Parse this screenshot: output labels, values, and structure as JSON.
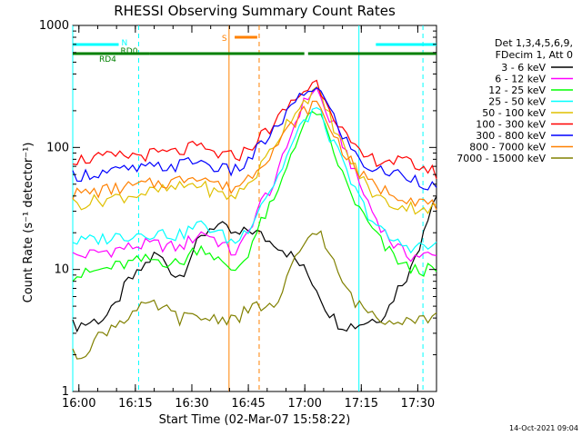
{
  "chart_data": {
    "type": "line",
    "title": "RHESSI Observing Summary Count Rates",
    "xlabel": "Start Time (02-Mar-07 15:58:22)",
    "ylabel": "Count Rate (s⁻¹ detector⁻¹)",
    "x_start_time": "15:58:22",
    "xlim_minutes": [
      0,
      96.6
    ],
    "x_ticks": [
      {
        "label": "16:00",
        "t": 1.63
      },
      {
        "label": "16:15",
        "t": 16.63
      },
      {
        "label": "16:30",
        "t": 31.63
      },
      {
        "label": "16:45",
        "t": 46.63
      },
      {
        "label": "17:00",
        "t": 61.63
      },
      {
        "label": "17:15",
        "t": 76.63
      },
      {
        "label": "17:30",
        "t": 91.63
      }
    ],
    "ylim": [
      1,
      1000
    ],
    "y_scale": "log",
    "y_ticks": [
      {
        "label": "1",
        "v": 1
      },
      {
        "label": "10",
        "v": 10
      },
      {
        "label": "100",
        "v": 100
      },
      {
        "label": "1000",
        "v": 1000
      }
    ],
    "legend": {
      "header": [
        "Det 1,3,4,5,6,9,",
        "FDecim 1, Att 0"
      ],
      "placement": "right"
    },
    "series": [
      {
        "name": "3 - 6 keV",
        "color": "#000000",
        "values": [
          3.5,
          3.5,
          3.6,
          3.6,
          3.7,
          3.8,
          3.9,
          4,
          4.2,
          4.5,
          5,
          6,
          7,
          8,
          8.5,
          9,
          10,
          11,
          12,
          13,
          13,
          12,
          11,
          10,
          9,
          9,
          10,
          12,
          14,
          16,
          18,
          20,
          22,
          23,
          23,
          22,
          21,
          20,
          19,
          19,
          20,
          21,
          21,
          20,
          19,
          18,
          17,
          17,
          16,
          15,
          14,
          13,
          12,
          11,
          10,
          9,
          8,
          7,
          6,
          5,
          4.5,
          4,
          3.7,
          3.6,
          3.5,
          3.5,
          3.5,
          3.6,
          3.7,
          3.8,
          3.9,
          4,
          4.2,
          4.5,
          5,
          6,
          7,
          8,
          9,
          10,
          13,
          16,
          22,
          28,
          35,
          40
        ]
      },
      {
        "name": "6 - 12 keV",
        "color": "#ff00ff",
        "values": [
          13,
          13,
          13,
          13.2,
          13.4,
          13.6,
          13.8,
          14,
          14.2,
          14.4,
          14.6,
          14.8,
          15,
          15.2,
          15.4,
          15.6,
          15.8,
          16,
          16,
          16,
          16,
          15.8,
          15.6,
          15.4,
          15.2,
          15,
          16,
          17,
          18,
          19,
          20,
          20,
          19,
          18,
          17,
          16,
          15,
          14,
          14,
          15,
          17,
          20,
          25,
          30,
          35,
          40,
          45,
          50,
          60,
          80,
          100,
          130,
          160,
          200,
          230,
          260,
          290,
          300,
          250,
          200,
          170,
          150,
          130,
          110,
          90,
          75,
          60,
          50,
          42,
          36,
          30,
          26,
          23,
          20,
          18,
          16,
          15,
          14,
          13.5,
          13,
          13,
          13,
          13,
          13,
          12.8,
          12.6
        ]
      },
      {
        "name": "12 - 25 keV",
        "color": "#00ff00",
        "values": [
          9,
          9,
          9,
          9.2,
          9.4,
          9.6,
          9.8,
          10,
          10.2,
          10.4,
          10.6,
          10.8,
          11,
          11.2,
          11.4,
          11.6,
          11.8,
          12,
          12,
          12,
          12,
          11.8,
          11.6,
          11.4,
          11.2,
          11,
          12,
          13,
          14,
          15,
          15,
          15,
          14,
          13,
          12,
          11,
          10,
          10,
          10,
          11,
          12,
          14,
          17,
          20,
          24,
          28,
          32,
          36,
          42,
          55,
          70,
          90,
          110,
          130,
          150,
          170,
          190,
          200,
          170,
          140,
          110,
          90,
          75,
          60,
          50,
          42,
          36,
          31,
          27,
          24,
          21,
          19,
          17,
          15,
          14,
          13,
          12,
          11,
          10.5,
          10,
          10,
          10,
          10,
          10,
          9.8,
          9.6
        ]
      },
      {
        "name": "25 - 50 keV",
        "color": "#00ffff",
        "values": [
          17,
          17,
          17,
          17.2,
          17.4,
          17.6,
          17.8,
          18,
          18.2,
          18.4,
          18.6,
          18.8,
          19,
          19.2,
          19.4,
          19.6,
          19.8,
          20,
          20,
          20,
          20,
          19.8,
          19.6,
          19.4,
          19.2,
          19,
          20,
          21,
          22,
          23,
          23,
          23,
          22,
          21,
          20,
          19,
          18,
          17,
          17,
          18,
          20,
          22,
          26,
          30,
          35,
          40,
          45,
          50,
          58,
          70,
          85,
          100,
          120,
          140,
          160,
          180,
          200,
          210,
          180,
          150,
          125,
          105,
          90,
          75,
          62,
          52,
          44,
          38,
          33,
          29,
          26,
          23,
          21,
          19,
          18,
          17,
          16.5,
          16,
          15.8,
          15.6,
          15.5,
          15.5,
          15.5,
          15.4,
          15.3,
          15.2
        ]
      },
      {
        "name": "50 - 100 keV",
        "color": "#e0c000",
        "values": [
          35,
          35,
          35,
          35.5,
          36,
          36.5,
          37,
          37.5,
          38,
          38.5,
          39,
          39.5,
          40,
          40.5,
          41,
          41.5,
          42,
          42.5,
          43,
          43.5,
          44,
          44.5,
          45,
          45.5,
          46,
          47,
          48,
          49,
          50,
          50,
          49,
          47,
          45,
          43,
          42,
          41,
          40,
          40,
          41,
          43,
          46,
          50,
          56,
          62,
          70,
          80,
          92,
          105,
          120,
          140,
          160,
          180,
          200,
          220,
          240,
          260,
          280,
          290,
          250,
          210,
          180,
          150,
          125,
          105,
          90,
          78,
          68,
          60,
          53,
          47,
          43,
          40,
          38,
          36,
          35,
          34,
          33.5,
          33,
          32.8,
          32.6,
          32.4,
          32.2,
          32,
          31.8,
          31.6,
          31.4
        ]
      },
      {
        "name": "100 - 300 keV",
        "color": "#ff0000",
        "values": [
          80,
          80,
          80,
          80.5,
          81,
          81.5,
          82,
          82.5,
          83,
          83.5,
          84,
          84.5,
          85,
          85.5,
          86,
          86.5,
          87,
          87.5,
          88,
          88.5,
          89,
          89.5,
          90,
          90.5,
          91,
          92,
          95,
          98,
          100,
          100,
          98,
          95,
          92,
          90,
          88,
          86,
          85,
          85,
          86,
          88,
          92,
          98,
          106,
          115,
          125,
          135,
          145,
          155,
          170,
          190,
          210,
          230,
          250,
          270,
          290,
          310,
          330,
          340,
          300,
          260,
          220,
          190,
          160,
          140,
          120,
          105,
          95,
          88,
          84,
          82,
          81,
          80,
          79.5,
          79,
          78.5,
          78,
          77,
          76,
          75,
          74,
          72,
          70,
          68,
          66,
          64,
          62
        ]
      },
      {
        "name": "300 - 800 keV",
        "color": "#0000ff",
        "values": [
          60,
          60,
          60,
          60.5,
          61,
          61.5,
          62,
          62.5,
          63,
          63.5,
          64,
          64.5,
          65,
          65.5,
          66,
          66.5,
          67,
          67.5,
          68,
          68.5,
          69,
          69.5,
          70,
          70.5,
          71,
          72,
          74,
          76,
          78,
          78,
          76,
          74,
          72,
          70,
          68,
          66,
          65,
          65,
          66,
          68,
          72,
          78,
          86,
          95,
          105,
          115,
          125,
          135,
          150,
          170,
          190,
          210,
          230,
          250,
          270,
          290,
          310,
          320,
          280,
          240,
          205,
          175,
          150,
          130,
          112,
          98,
          88,
          80,
          74,
          70,
          67,
          65,
          64,
          63,
          62.5,
          62,
          61,
          60,
          59,
          58,
          56,
          54,
          52,
          50,
          48,
          46
        ]
      },
      {
        "name": "800 - 7000 keV",
        "color": "#ff8000",
        "values": [
          42,
          42,
          42,
          42.5,
          43,
          43.5,
          44,
          44.5,
          45,
          45.5,
          46,
          46.5,
          47,
          47.5,
          48,
          48.5,
          49,
          49.5,
          50,
          50.5,
          51,
          51.5,
          52,
          52.5,
          53,
          54,
          56,
          58,
          60,
          60,
          58,
          56,
          54,
          52,
          50,
          48,
          47,
          47,
          48,
          50,
          53,
          57,
          62,
          68,
          75,
          82,
          90,
          98,
          108,
          120,
          135,
          150,
          165,
          180,
          195,
          210,
          225,
          230,
          200,
          175,
          150,
          130,
          112,
          98,
          86,
          76,
          68,
          62,
          57,
          53,
          50,
          48,
          46,
          44.5,
          43.5,
          42.5,
          41.5,
          40.5,
          39.5,
          38.5,
          37.5,
          36.5,
          35.5,
          34.5,
          33.5,
          32.5
        ]
      },
      {
        "name": "7000 - 15000 keV",
        "color": "#808000",
        "values": [
          2,
          2,
          2,
          2.2,
          2.4,
          2.6,
          2.8,
          3,
          3.2,
          3.4,
          3.6,
          3.8,
          4,
          4.2,
          4.4,
          4.6,
          4.8,
          5,
          5,
          5,
          5,
          4.8,
          4.6,
          4.4,
          4.2,
          4,
          4,
          4,
          4,
          4,
          4,
          4,
          4,
          4,
          4,
          4,
          4,
          4,
          4,
          4.2,
          4.4,
          4.6,
          4.8,
          5,
          5,
          5,
          5,
          5,
          5,
          6,
          8,
          10,
          12,
          14,
          16,
          18,
          20,
          22,
          19,
          16,
          13,
          11,
          9,
          8,
          7,
          6,
          5.5,
          5,
          4.8,
          4.6,
          4.4,
          4.2,
          4,
          4,
          4,
          4,
          4,
          4,
          4,
          4,
          4,
          4,
          4,
          4,
          4,
          4
        ]
      }
    ],
    "annotations": [
      {
        "label": "S",
        "color": "#ff8000"
      },
      {
        "label": "N",
        "color": "#00ffff"
      },
      {
        "label": "RD0",
        "color": "#008000"
      },
      {
        "label": "RD4",
        "color": "#008000"
      }
    ],
    "flag_segments": [
      {
        "name": "saa-night",
        "color": "#00ffff",
        "t": [
          0.0,
          12.2
        ]
      },
      {
        "name": "saa-night",
        "color": "#00ffff",
        "t": [
          80.5,
          96.6
        ]
      },
      {
        "name": "s-flag",
        "color": "#ff8000",
        "t": [
          43.0,
          49.0
        ]
      },
      {
        "name": "rd4-flag",
        "color": "#008000",
        "t": [
          0.0,
          12.2
        ]
      },
      {
        "name": "rd0-flag",
        "color": "#008000",
        "t": [
          12.2,
          20.5
        ]
      },
      {
        "name": "rd0-flag",
        "color": "#008000",
        "t": [
          20.5,
          61.5
        ]
      },
      {
        "name": "rd0-flag",
        "color": "#008000",
        "t": [
          62.5,
          96.6
        ]
      }
    ],
    "vlines": [
      {
        "t": 0.0,
        "color": "#00ffff",
        "style": "solid"
      },
      {
        "t": 17.5,
        "color": "#00ffff",
        "style": "dashed"
      },
      {
        "t": 41.5,
        "color": "#ff8000",
        "style": "solid"
      },
      {
        "t": 49.5,
        "color": "#ff8000",
        "style": "dashed"
      },
      {
        "t": 76.0,
        "color": "#00ffff",
        "style": "solid"
      },
      {
        "t": 93.0,
        "color": "#00ffff",
        "style": "dashed"
      }
    ],
    "grid": false
  },
  "footer_timestamp": "14-Oct-2021 09:04"
}
